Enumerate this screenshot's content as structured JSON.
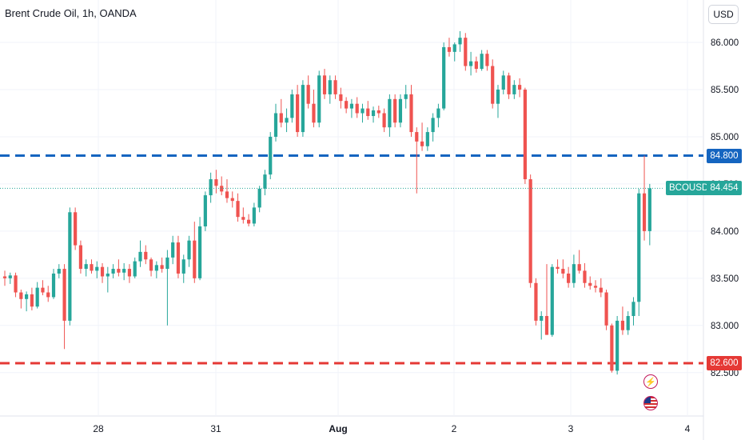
{
  "header": {
    "title": "Brent Crude Oil, 1h, OANDA",
    "currency": "USD"
  },
  "colors": {
    "up": "#26a69a",
    "down": "#ef5350",
    "support": "#e53935",
    "resistance": "#1565c0",
    "last_price": "#26a69a"
  },
  "chart_data": {
    "type": "candlestick",
    "x_ticks": [
      "28",
      "31",
      "Aug",
      "2",
      "3",
      "4"
    ],
    "y_ticks": [
      "82.500",
      "83.000",
      "83.500",
      "84.000",
      "84.500",
      "85.000",
      "85.500",
      "86.000"
    ],
    "ylim": [
      82.04,
      86.45
    ],
    "horizontal_lines": [
      {
        "label": "84.800",
        "value": 84.8,
        "style": "dashed",
        "color": "#1565c0"
      },
      {
        "label": "82.600",
        "value": 82.6,
        "style": "dashed",
        "color": "#e53935"
      }
    ],
    "last_price": {
      "symbol": "BCOUSD",
      "label": "84.454",
      "value": 84.454
    },
    "candles": [
      [
        83.52,
        83.58,
        83.42,
        83.5
      ],
      [
        83.5,
        83.56,
        83.44,
        83.53
      ],
      [
        83.53,
        83.56,
        83.3,
        83.35
      ],
      [
        83.35,
        83.38,
        83.18,
        83.28
      ],
      [
        83.28,
        83.36,
        83.15,
        83.33
      ],
      [
        83.33,
        83.4,
        83.16,
        83.2
      ],
      [
        83.2,
        83.46,
        83.18,
        83.4
      ],
      [
        83.4,
        83.48,
        83.32,
        83.35
      ],
      [
        83.35,
        83.42,
        83.25,
        83.3
      ],
      [
        83.3,
        83.6,
        83.28,
        83.55
      ],
      [
        83.55,
        83.65,
        83.5,
        83.6
      ],
      [
        83.6,
        83.65,
        82.75,
        83.05
      ],
      [
        83.05,
        84.25,
        83.0,
        84.2
      ],
      [
        84.2,
        84.25,
        83.8,
        83.85
      ],
      [
        83.85,
        83.9,
        83.55,
        83.6
      ],
      [
        83.6,
        83.7,
        83.52,
        83.65
      ],
      [
        83.65,
        83.7,
        83.55,
        83.58
      ],
      [
        83.58,
        83.68,
        83.5,
        83.62
      ],
      [
        83.62,
        83.66,
        83.45,
        83.52
      ],
      [
        83.52,
        83.62,
        83.35,
        83.55
      ],
      [
        83.55,
        83.65,
        83.5,
        83.6
      ],
      [
        83.6,
        83.7,
        83.52,
        83.56
      ],
      [
        83.56,
        83.66,
        83.48,
        83.6
      ],
      [
        83.6,
        83.65,
        83.45,
        83.52
      ],
      [
        83.52,
        83.72,
        83.5,
        83.68
      ],
      [
        83.68,
        83.9,
        83.62,
        83.78
      ],
      [
        83.78,
        83.85,
        83.65,
        83.7
      ],
      [
        83.7,
        83.72,
        83.52,
        83.58
      ],
      [
        83.58,
        83.68,
        83.5,
        83.64
      ],
      [
        83.64,
        83.72,
        83.56,
        83.6
      ],
      [
        83.6,
        83.8,
        83.0,
        83.72
      ],
      [
        83.72,
        83.95,
        83.65,
        83.88
      ],
      [
        83.88,
        83.95,
        83.5,
        83.55
      ],
      [
        83.55,
        83.75,
        83.45,
        83.7
      ],
      [
        83.7,
        83.95,
        83.62,
        83.9
      ],
      [
        83.9,
        84.1,
        83.45,
        83.5
      ],
      [
        83.5,
        84.15,
        83.48,
        84.05
      ],
      [
        84.05,
        84.42,
        84.0,
        84.38
      ],
      [
        84.38,
        84.62,
        84.3,
        84.55
      ],
      [
        84.55,
        84.65,
        84.4,
        84.48
      ],
      [
        84.48,
        84.58,
        84.38,
        84.42
      ],
      [
        84.42,
        84.55,
        84.3,
        84.35
      ],
      [
        84.35,
        84.42,
        84.25,
        84.32
      ],
      [
        84.32,
        84.4,
        84.1,
        84.15
      ],
      [
        84.15,
        84.25,
        84.08,
        84.12
      ],
      [
        84.12,
        84.18,
        84.05,
        84.08
      ],
      [
        84.08,
        84.3,
        84.05,
        84.25
      ],
      [
        84.25,
        84.48,
        84.2,
        84.45
      ],
      [
        84.45,
        84.65,
        84.38,
        84.6
      ],
      [
        84.6,
        85.05,
        84.55,
        85.0
      ],
      [
        85.0,
        85.35,
        84.95,
        85.25
      ],
      [
        85.25,
        85.4,
        85.1,
        85.15
      ],
      [
        85.15,
        85.3,
        85.05,
        85.2
      ],
      [
        85.2,
        85.5,
        85.15,
        85.45
      ],
      [
        85.45,
        85.55,
        85.0,
        85.05
      ],
      [
        85.05,
        85.6,
        85.0,
        85.55
      ],
      [
        85.55,
        85.65,
        85.3,
        85.35
      ],
      [
        85.35,
        85.5,
        85.1,
        85.15
      ],
      [
        85.15,
        85.7,
        85.1,
        85.65
      ],
      [
        85.65,
        85.72,
        85.4,
        85.45
      ],
      [
        85.45,
        85.65,
        85.35,
        85.6
      ],
      [
        85.6,
        85.65,
        85.4,
        85.45
      ],
      [
        85.45,
        85.52,
        85.3,
        85.38
      ],
      [
        85.38,
        85.42,
        85.25,
        85.3
      ],
      [
        85.3,
        85.4,
        85.2,
        85.35
      ],
      [
        85.35,
        85.42,
        85.2,
        85.25
      ],
      [
        85.25,
        85.35,
        85.15,
        85.3
      ],
      [
        85.3,
        85.38,
        85.18,
        85.22
      ],
      [
        85.22,
        85.32,
        85.15,
        85.28
      ],
      [
        85.28,
        85.33,
        85.2,
        85.25
      ],
      [
        85.25,
        85.3,
        85.05,
        85.1
      ],
      [
        85.1,
        85.45,
        85.0,
        85.4
      ],
      [
        85.4,
        85.45,
        85.1,
        85.15
      ],
      [
        85.15,
        85.45,
        85.1,
        85.4
      ],
      [
        85.4,
        85.55,
        85.3,
        85.45
      ],
      [
        85.45,
        85.55,
        85.0,
        85.05
      ],
      [
        85.05,
        85.1,
        84.4,
        84.95
      ],
      [
        84.95,
        85.15,
        84.85,
        84.9
      ],
      [
        84.9,
        85.1,
        84.85,
        85.05
      ],
      [
        85.05,
        85.25,
        84.95,
        85.2
      ],
      [
        85.2,
        85.35,
        85.1,
        85.3
      ],
      [
        85.3,
        86.0,
        85.28,
        85.95
      ],
      [
        85.95,
        86.05,
        85.85,
        85.9
      ],
      [
        85.9,
        86.0,
        85.8,
        85.98
      ],
      [
        85.98,
        86.12,
        85.9,
        86.05
      ],
      [
        86.05,
        86.1,
        85.7,
        85.75
      ],
      [
        85.75,
        85.9,
        85.65,
        85.8
      ],
      [
        85.8,
        85.85,
        85.68,
        85.72
      ],
      [
        85.72,
        85.92,
        85.7,
        85.88
      ],
      [
        85.88,
        85.92,
        85.7,
        85.75
      ],
      [
        85.75,
        85.82,
        85.3,
        85.35
      ],
      [
        85.35,
        85.55,
        85.2,
        85.5
      ],
      [
        85.5,
        85.7,
        85.45,
        85.65
      ],
      [
        85.65,
        85.68,
        85.4,
        85.45
      ],
      [
        85.45,
        85.6,
        85.4,
        85.55
      ],
      [
        85.55,
        85.62,
        85.42,
        85.5
      ],
      [
        85.5,
        85.52,
        84.5,
        84.55
      ],
      [
        84.55,
        84.6,
        83.4,
        83.45
      ],
      [
        83.45,
        83.5,
        83.0,
        83.05
      ],
      [
        83.05,
        83.15,
        82.85,
        83.1
      ],
      [
        83.1,
        83.65,
        82.9,
        82.9
      ],
      [
        82.9,
        83.65,
        82.88,
        83.62
      ],
      [
        83.62,
        83.7,
        83.55,
        83.6
      ],
      [
        83.6,
        83.7,
        83.5,
        83.55
      ],
      [
        83.55,
        83.62,
        83.4,
        83.45
      ],
      [
        83.45,
        83.75,
        83.4,
        83.65
      ],
      [
        83.65,
        83.8,
        83.55,
        83.58
      ],
      [
        83.58,
        83.66,
        83.4,
        83.45
      ],
      [
        83.45,
        83.52,
        83.38,
        83.42
      ],
      [
        83.42,
        83.48,
        83.35,
        83.4
      ],
      [
        83.4,
        83.5,
        83.3,
        83.35
      ],
      [
        83.35,
        83.38,
        82.95,
        83.0
      ],
      [
        83.0,
        83.02,
        82.5,
        82.52
      ],
      [
        82.52,
        83.1,
        82.48,
        83.05
      ],
      [
        83.05,
        83.2,
        82.9,
        82.95
      ],
      [
        82.95,
        83.15,
        82.9,
        83.1
      ],
      [
        83.1,
        83.3,
        83.0,
        83.25
      ],
      [
        83.25,
        84.45,
        83.1,
        84.4
      ],
      [
        84.4,
        84.8,
        83.9,
        84.0
      ],
      [
        84.0,
        84.5,
        83.85,
        84.454
      ]
    ]
  }
}
